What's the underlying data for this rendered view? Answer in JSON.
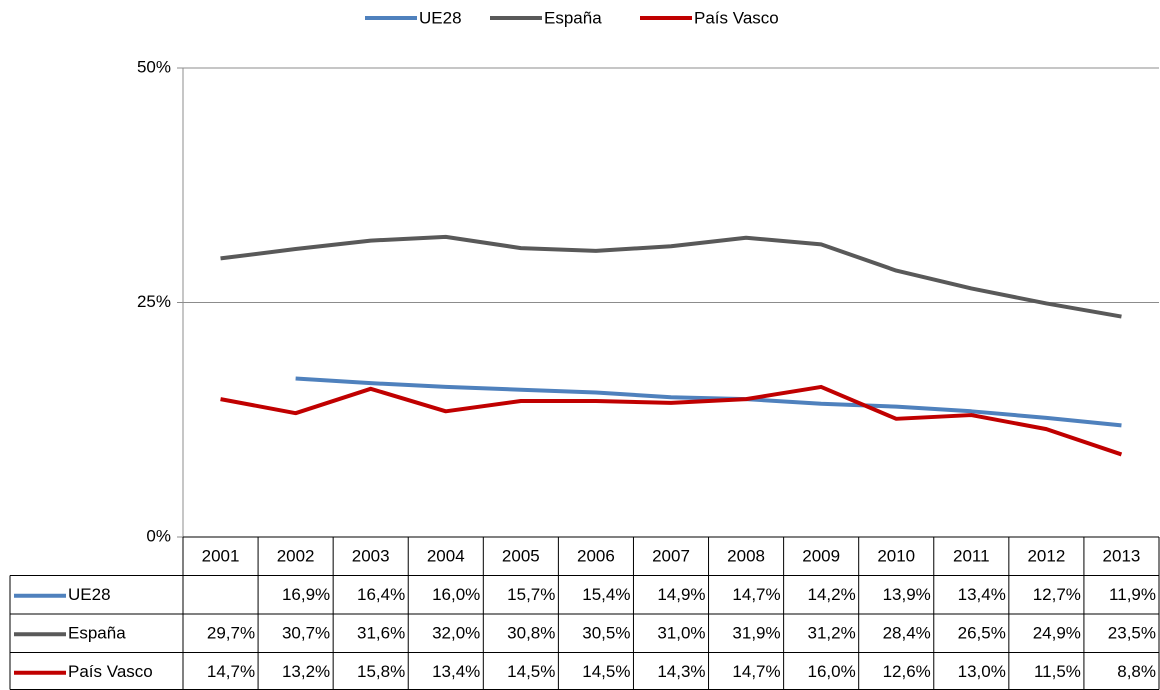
{
  "chart_data": {
    "type": "line",
    "categories": [
      "2001",
      "2002",
      "2003",
      "2004",
      "2005",
      "2006",
      "2007",
      "2008",
      "2009",
      "2010",
      "2011",
      "2012",
      "2013"
    ],
    "series": [
      {
        "name": "UE28",
        "color": "#4f81bd",
        "values": [
          null,
          16.9,
          16.4,
          16.0,
          15.7,
          15.4,
          14.9,
          14.7,
          14.2,
          13.9,
          13.4,
          12.7,
          11.9
        ],
        "value_labels": [
          null,
          "16,9%",
          "16,4%",
          "16,0%",
          "15,7%",
          "15,4%",
          "14,9%",
          "14,7%",
          "14,2%",
          "13,9%",
          "13,4%",
          "12,7%",
          "11,9%"
        ]
      },
      {
        "name": "España",
        "color": "#595959",
        "values": [
          29.7,
          30.7,
          31.6,
          32.0,
          30.8,
          30.5,
          31.0,
          31.9,
          31.2,
          28.4,
          26.5,
          24.9,
          23.5
        ],
        "value_labels": [
          "29,7%",
          "30,7%",
          "31,6%",
          "32,0%",
          "30,8%",
          "30,5%",
          "31,0%",
          "31,9%",
          "31,2%",
          "28,4%",
          "26,5%",
          "24,9%",
          "23,5%"
        ]
      },
      {
        "name": "País Vasco",
        "color": "#c00000",
        "values": [
          14.7,
          13.2,
          15.8,
          13.4,
          14.5,
          14.5,
          14.3,
          14.7,
          16.0,
          12.6,
          13.0,
          11.5,
          8.8
        ],
        "value_labels": [
          "14,7%",
          "13,2%",
          "15,8%",
          "13,4%",
          "14,5%",
          "14,5%",
          "14,3%",
          "14,7%",
          "16,0%",
          "12,6%",
          "13,0%",
          "11,5%",
          "8,8%"
        ]
      }
    ],
    "ylim": [
      0,
      50
    ],
    "yticks": [
      {
        "value": 0,
        "label": "0%"
      },
      {
        "value": 25,
        "label": "25%"
      },
      {
        "value": 50,
        "label": "50%"
      }
    ],
    "grid": true,
    "legend": "top"
  }
}
